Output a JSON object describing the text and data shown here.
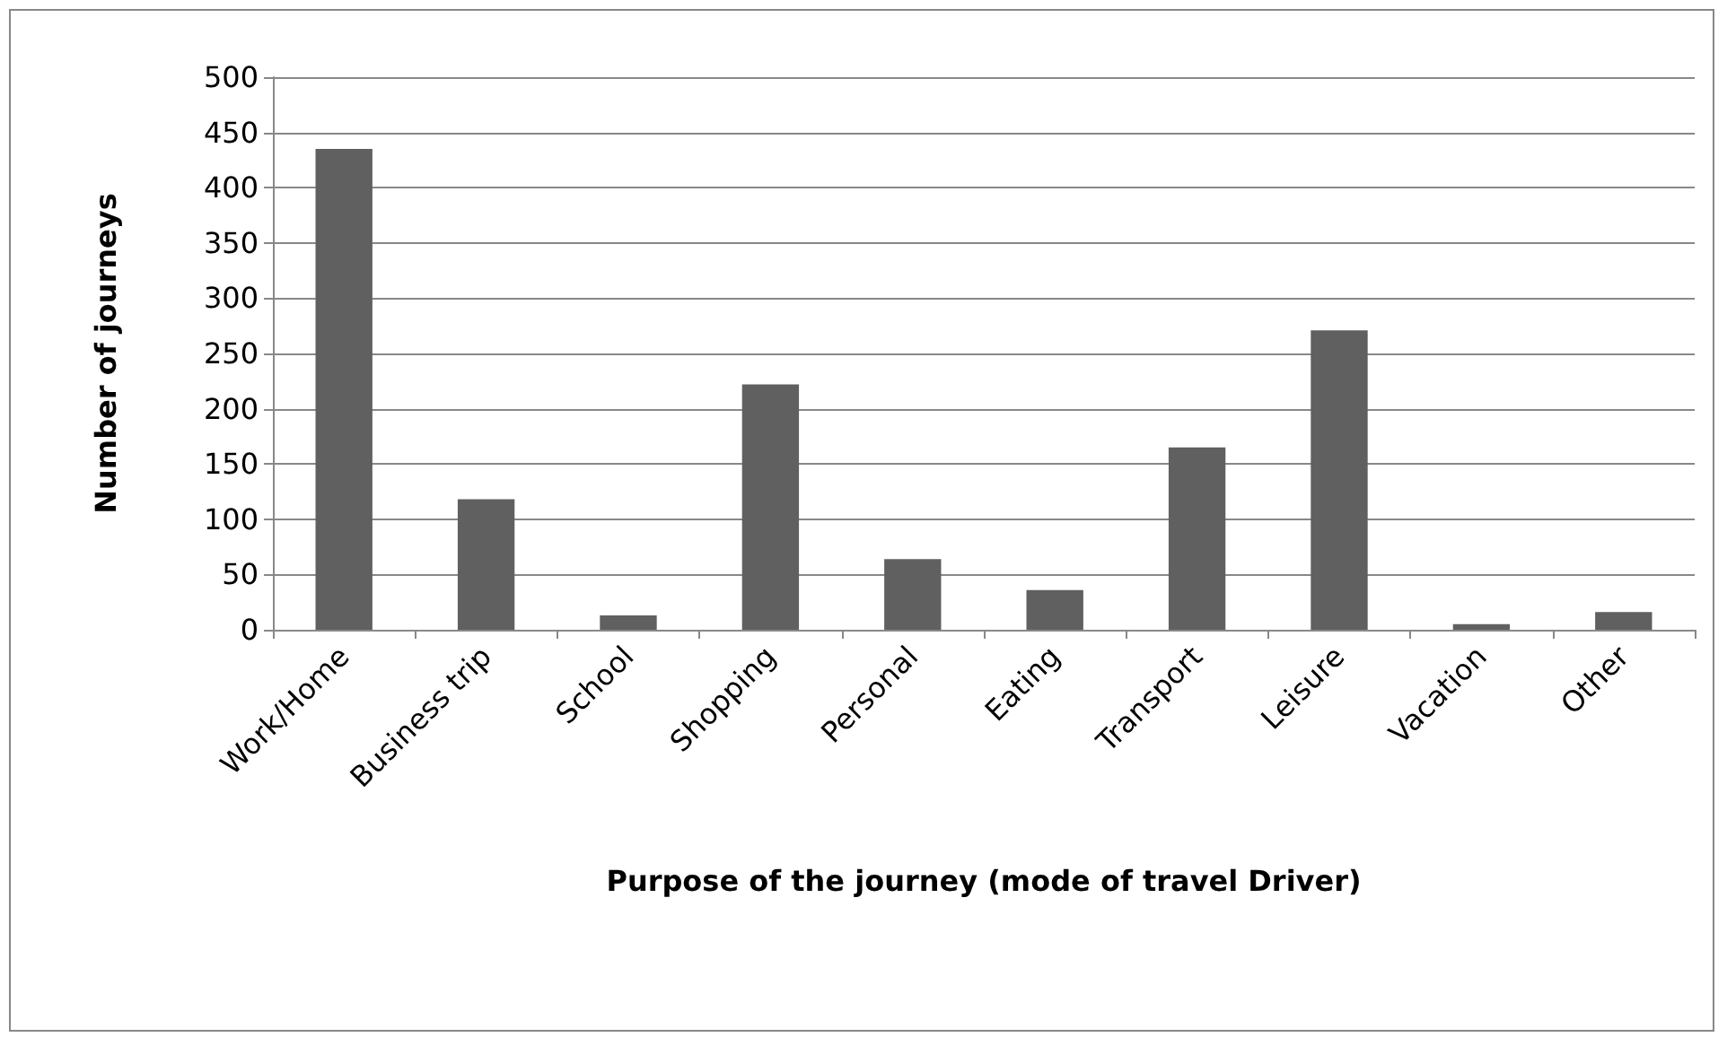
{
  "chart_data": {
    "type": "bar",
    "xlabel": "Purpose of the journey (mode of travel Driver)",
    "ylabel": "Number of journeys",
    "categories": [
      "Work/Home",
      "Business trip",
      "School",
      "Shopping",
      "Personal",
      "Eating",
      "Transport",
      "Leisure",
      "Vacation",
      "Other"
    ],
    "values": [
      435,
      118,
      13,
      222,
      64,
      36,
      165,
      271,
      5,
      16
    ],
    "color": "#606060",
    "ylim": [
      0,
      500
    ],
    "yticks": [
      0,
      50,
      100,
      150,
      200,
      250,
      300,
      350,
      400,
      450,
      500
    ],
    "grid": "y"
  }
}
